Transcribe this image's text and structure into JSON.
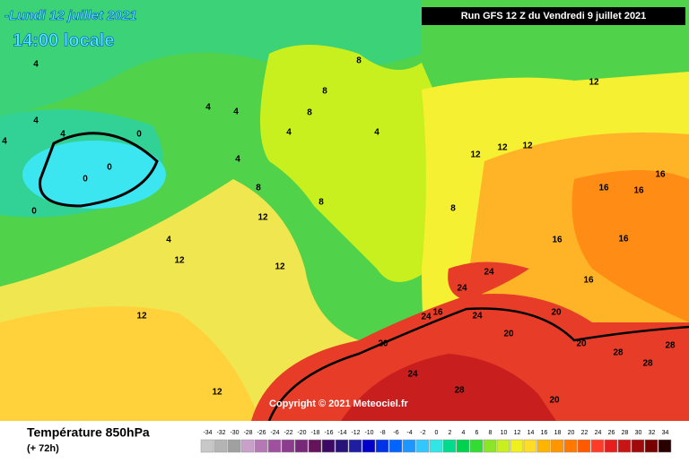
{
  "header": {
    "date": "-Lundi 12 juillet 2021",
    "time": "14:00 locale",
    "run": "Run GFS 12 Z du Vendredi 9 juillet 2021"
  },
  "map": {
    "copyright": "Copyright © 2021 Meteociel.fr",
    "labels": [
      4,
      4,
      4,
      4,
      4,
      0,
      0,
      0,
      0,
      4,
      4,
      4,
      4,
      4,
      8,
      8,
      8,
      8,
      8,
      8,
      12,
      12,
      12,
      12,
      12,
      12,
      12,
      16,
      16,
      16,
      16,
      16,
      16,
      20,
      20,
      20,
      20,
      24,
      24,
      24,
      24,
      28,
      28,
      28,
      28,
      12,
      12,
      20,
      24,
      16
    ]
  },
  "footer": {
    "title": "Température 850hPa",
    "lead": "(+ 72h)"
  },
  "scale": {
    "values": [
      -34,
      -32,
      -30,
      -28,
      -26,
      -24,
      -22,
      -20,
      -18,
      -16,
      -14,
      -12,
      -10,
      -8,
      -6,
      -4,
      -2,
      0,
      2,
      4,
      6,
      8,
      10,
      12,
      14,
      16,
      18,
      20,
      22,
      24,
      26,
      28,
      30,
      32,
      34
    ],
    "colors": [
      "#c8c8c8",
      "#b4b4b4",
      "#a0a0a0",
      "#c8a0c8",
      "#b478b4",
      "#a050a0",
      "#8c3c8c",
      "#782878",
      "#64145a",
      "#3c0a64",
      "#281478",
      "#1e1ea0",
      "#0000c8",
      "#0032e6",
      "#0064ff",
      "#1e96ff",
      "#32c8ff",
      "#32e6e6",
      "#00dc8c",
      "#00d250",
      "#32dc32",
      "#8ce628",
      "#c8f01e",
      "#f0f01e",
      "#ffdc28",
      "#ffb400",
      "#ff9600",
      "#ff7800",
      "#ff5a00",
      "#ff3c28",
      "#e61e1e",
      "#c81414",
      "#a00a0a",
      "#780000",
      "#280000"
    ]
  }
}
